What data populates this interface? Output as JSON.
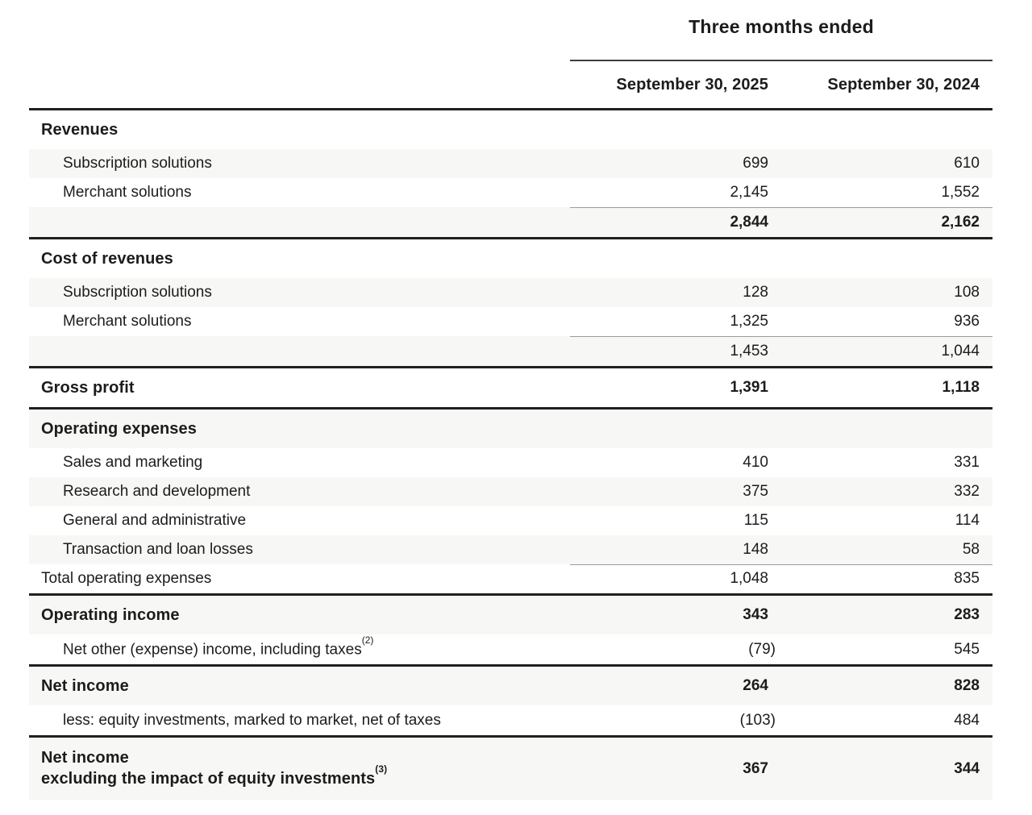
{
  "table": {
    "period_header": "Three months ended",
    "columns": [
      "September 30, 2025",
      "September 30, 2024"
    ],
    "rows": [
      {
        "label": "Revenues",
        "v1": "",
        "v2": ""
      },
      {
        "label": "Subscription solutions",
        "v1": "699",
        "v2": "610"
      },
      {
        "label": "Merchant solutions",
        "v1": "2,145",
        "v2": "1,552"
      },
      {
        "label": "",
        "v1": "2,844",
        "v2": "2,162"
      },
      {
        "label": "Cost of revenues",
        "v1": "",
        "v2": ""
      },
      {
        "label": "Subscription solutions",
        "v1": "128",
        "v2": "108"
      },
      {
        "label": "Merchant solutions",
        "v1": "1,325",
        "v2": "936"
      },
      {
        "label": "",
        "v1": "1,453",
        "v2": "1,044"
      },
      {
        "label": "Gross profit",
        "v1": "1,391",
        "v2": "1,118"
      },
      {
        "label": "Operating expenses",
        "v1": "",
        "v2": ""
      },
      {
        "label": "Sales and marketing",
        "v1": "410",
        "v2": "331"
      },
      {
        "label": "Research and development",
        "v1": "375",
        "v2": "332"
      },
      {
        "label": "General and administrative",
        "v1": "115",
        "v2": "114"
      },
      {
        "label": "Transaction and loan losses",
        "v1": "148",
        "v2": "58"
      },
      {
        "label": "Total operating expenses",
        "v1": "1,048",
        "v2": "835"
      },
      {
        "label": "Operating income",
        "v1": "343",
        "v2": "283"
      },
      {
        "label": "Net other (expense) income, including taxes",
        "sup": "(2)",
        "v1": "(79)",
        "v2": "545"
      },
      {
        "label": "Net income",
        "v1": "264",
        "v2": "828"
      },
      {
        "label": "less: equity investments, marked to market, net of taxes",
        "v1": "(103)",
        "v2": "484"
      },
      {
        "label": "Net income",
        "label2": "excluding the impact of equity investments",
        "sup": "(3)",
        "v1": "367",
        "v2": "344"
      }
    ]
  }
}
